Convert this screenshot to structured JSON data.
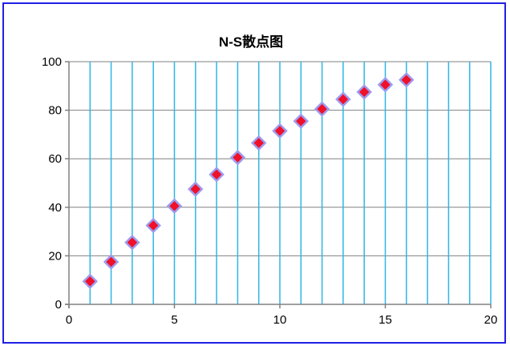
{
  "chart_data": {
    "type": "scatter",
    "title": "N-S散点图",
    "xlabel": "",
    "ylabel": "",
    "xlim": [
      0,
      20
    ],
    "ylim": [
      0,
      100
    ],
    "x_ticks": [
      0,
      5,
      10,
      15,
      20
    ],
    "y_ticks": [
      0,
      20,
      40,
      60,
      80,
      100
    ],
    "x_grid": [
      1,
      2,
      3,
      4,
      5,
      6,
      7,
      8,
      9,
      10,
      11,
      12,
      13,
      14,
      15,
      16,
      17,
      18,
      19,
      20
    ],
    "y_grid": [
      20,
      40,
      60,
      80,
      100
    ],
    "grid": true,
    "legend": "none",
    "marker": "diamond",
    "series": [
      {
        "x": [
          1,
          2,
          3,
          4,
          5,
          6,
          7,
          8,
          9,
          10,
          11,
          12,
          13,
          14,
          15,
          16
        ],
        "y": [
          9.5,
          17.5,
          25.5,
          32.5,
          40.5,
          47.5,
          53.5,
          60.5,
          66.5,
          71.5,
          75.5,
          80.5,
          84.5,
          87.5,
          90.5,
          92.5
        ]
      }
    ]
  },
  "colors": {
    "frame_border": "#1f1fe6",
    "x_gridline": "#2eb6e6",
    "y_gridline": "#808080",
    "axis": "#808080",
    "marker_fill": "#f0102a",
    "marker_stroke": "#9c9cf0"
  }
}
